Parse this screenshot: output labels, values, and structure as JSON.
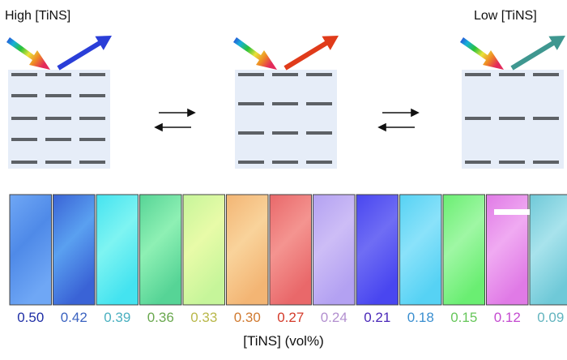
{
  "labels": {
    "high": "High [TiNS]",
    "low": "Low [TiNS]",
    "axis": "[TiNS] (vol%)"
  },
  "concentration_values": [
    "0.50",
    "0.42",
    "0.39",
    "0.36",
    "0.33",
    "0.30",
    "0.27",
    "0.24",
    "0.21",
    "0.18",
    "0.15",
    "0.12",
    "0.09"
  ],
  "value_colors": [
    "#1f2fa6",
    "#3a62c0",
    "#4ab0c0",
    "#6aa84f",
    "#b9b84a",
    "#d07a30",
    "#d43a2a",
    "#b28fcf",
    "#4a28b8",
    "#3a8fd0",
    "#66c65a",
    "#c44ad0",
    "#62b4bf"
  ],
  "swatch_colors": [
    [
      "#6fa7f5",
      "#4f8ae8"
    ],
    [
      "#3a63d6",
      "#5aa0f0"
    ],
    [
      "#44e3f0",
      "#7ef4f2"
    ],
    [
      "#56d496",
      "#8ef0b4"
    ],
    [
      "#c6f59a",
      "#e8fba8"
    ],
    [
      "#f3b574",
      "#f9d39b"
    ],
    [
      "#e9686a",
      "#f49490"
    ],
    [
      "#b3a1f2",
      "#cdbdf6"
    ],
    [
      "#4946f0",
      "#6f6df4"
    ],
    [
      "#56d2f4",
      "#8ae2fa"
    ],
    [
      "#6aee72",
      "#9ff7a4"
    ],
    [
      "#e07ae6",
      "#f0aaf2"
    ],
    [
      "#6fc9d8",
      "#a8e3ec"
    ]
  ],
  "reflected_colors": {
    "high": "#2a3ed8",
    "mid": "#e03b1a",
    "low": "#3f9790"
  },
  "scale_bar_color": "#ffffff"
}
